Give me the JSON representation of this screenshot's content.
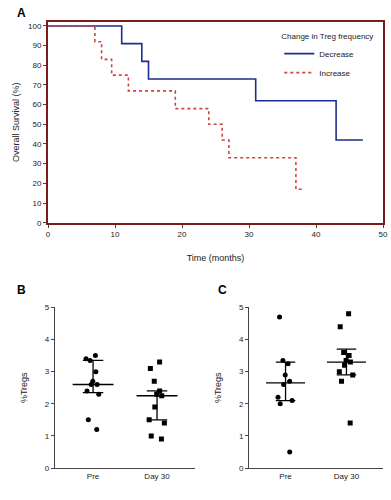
{
  "chart_data": [
    {
      "type": "step",
      "title": "A",
      "x_label": "Time (months)",
      "y_label": "Overall Survival (%)",
      "legend_title": "Change in Treg frequency",
      "legend": "top right",
      "xlim": [
        0,
        50
      ],
      "xticks": [
        0,
        10,
        20,
        30,
        40,
        50
      ],
      "ylim": [
        0,
        102
      ],
      "yticks": [
        0,
        10,
        20,
        30,
        40,
        50,
        60,
        70,
        80,
        90,
        100
      ],
      "series": [
        {
          "name": "Decrease",
          "color": "#1f2d8c",
          "line_style": "solid",
          "x": [
            0,
            11,
            14,
            15,
            31,
            43,
            47
          ],
          "values": [
            100,
            91,
            82,
            73,
            62,
            42,
            42
          ]
        },
        {
          "name": "Increase",
          "color": "#d0453c",
          "line_style": "dot",
          "x": [
            0,
            7,
            8,
            9.5,
            12,
            19,
            24,
            26,
            27,
            37,
            38
          ],
          "values": [
            100,
            92,
            83,
            75,
            67,
            58,
            50,
            42,
            33,
            17,
            17
          ]
        }
      ]
    },
    {
      "type": "dot",
      "title": "B",
      "y_label": "%Tregs",
      "categories": [
        "Pre",
        "Day 30"
      ],
      "ylim": [
        0,
        5
      ],
      "yticks": [
        0,
        1,
        2,
        3,
        4,
        5
      ],
      "groups": [
        {
          "category": "Pre",
          "marker": "circle",
          "color": "#000000",
          "values": [
            3.5,
            3.4,
            3.35,
            3.0,
            2.7,
            2.6,
            2.6,
            2.4,
            2.3,
            1.5,
            1.2
          ],
          "median": 2.6,
          "q1": 2.35,
          "q3": 3.35
        },
        {
          "category": "Day 30",
          "marker": "square",
          "color": "#000000",
          "values": [
            3.3,
            3.1,
            2.7,
            2.4,
            2.3,
            2.25,
            1.9,
            1.5,
            1.4,
            1.0,
            0.9
          ],
          "median": 2.25,
          "q1": 1.5,
          "q3": 2.4
        }
      ]
    },
    {
      "type": "dot",
      "title": "C",
      "y_label": "%Tregs",
      "categories": [
        "Pre",
        "Day 30"
      ],
      "ylim": [
        0,
        5
      ],
      "yticks": [
        0,
        1,
        2,
        3,
        4,
        5
      ],
      "groups": [
        {
          "category": "Pre",
          "marker": "circle",
          "color": "#000000",
          "values": [
            4.7,
            3.35,
            3.25,
            2.9,
            2.7,
            2.6,
            2.2,
            2.1,
            2.0,
            0.5
          ],
          "median": 2.65,
          "q1": 2.1,
          "q3": 3.3
        },
        {
          "category": "Day 30",
          "marker": "square",
          "color": "#000000",
          "values": [
            4.8,
            4.4,
            3.6,
            3.5,
            3.35,
            3.3,
            3.2,
            3.0,
            2.9,
            2.7,
            1.4
          ],
          "median": 3.3,
          "q1": 2.9,
          "q3": 3.7
        }
      ]
    }
  ]
}
